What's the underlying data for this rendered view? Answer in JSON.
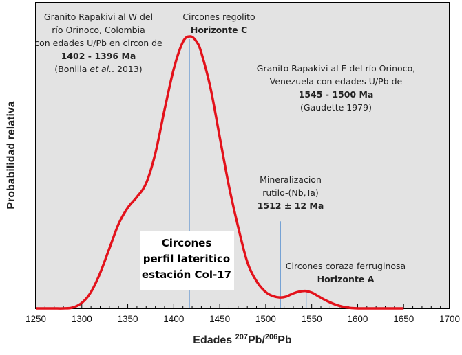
{
  "chart_data": {
    "type": "line",
    "xlabel_main": "Edades ",
    "xlabel_sup1": "207",
    "xlabel_mid": "Pb/",
    "xlabel_sup2": "206",
    "xlabel_end": "Pb",
    "ylabel": "Probabilidad relativa",
    "xlim": [
      1250,
      1700
    ],
    "ylim": [
      0,
      1.0
    ],
    "xticks": [
      1250,
      1300,
      1350,
      1400,
      1450,
      1500,
      1550,
      1600,
      1650,
      1700
    ],
    "series": [
      {
        "name": "Circones perfil lateritico estación Col-17",
        "color": "#e3121b",
        "x": [
          1250,
          1260,
          1270,
          1280,
          1290,
          1300,
          1310,
          1320,
          1330,
          1340,
          1350,
          1360,
          1370,
          1380,
          1390,
          1400,
          1410,
          1418,
          1425,
          1430,
          1440,
          1450,
          1460,
          1470,
          1480,
          1490,
          1500,
          1508,
          1515,
          1522,
          1530,
          1537,
          1543,
          1550,
          1557,
          1565,
          1575,
          1585,
          1595,
          1605,
          1620,
          1650
        ],
        "y": [
          0,
          0,
          0,
          0,
          0.003,
          0.02,
          0.06,
          0.13,
          0.22,
          0.31,
          0.37,
          0.41,
          0.46,
          0.57,
          0.73,
          0.88,
          0.98,
          1.0,
          0.98,
          0.94,
          0.81,
          0.63,
          0.45,
          0.3,
          0.17,
          0.1,
          0.06,
          0.045,
          0.04,
          0.043,
          0.055,
          0.062,
          0.064,
          0.058,
          0.045,
          0.03,
          0.015,
          0.005,
          0.001,
          0,
          0,
          0
        ]
      }
    ],
    "markers": [
      {
        "x": 1417,
        "top": 0.99,
        "color": "#6b9bd2"
      },
      {
        "x": 1516,
        "top": 0.32,
        "color": "#6b9bd2"
      },
      {
        "x": 1544,
        "top": 0.06,
        "color": "#6b9bd2"
      }
    ],
    "annotations": {
      "west": [
        "Granito Rapakivi al W del",
        "río Orinoco, Colombia",
        "con edades U/Pb en circon de",
        "1402 - 1396 Ma",
        "(Bonilla ",
        "et al.",
        ". 2013)"
      ],
      "regolito": [
        "Circones regolito",
        "Horizonte C"
      ],
      "east": [
        "Granito Rapakivi al E del río Orinoco,",
        "Venezuela con edades U/Pb de",
        "1545 - 1500 Ma",
        "(Gaudette 1979)"
      ],
      "mineral": [
        "Mineralizacion",
        "rutilo-(Nb,Ta)",
        "1512 ± 12 Ma"
      ],
      "coraza": [
        "Circones coraza ferruginosa",
        "Horizonte A"
      ],
      "legend_box": [
        "Circones",
        "perfil lateritico",
        "estación Col-17"
      ]
    }
  }
}
